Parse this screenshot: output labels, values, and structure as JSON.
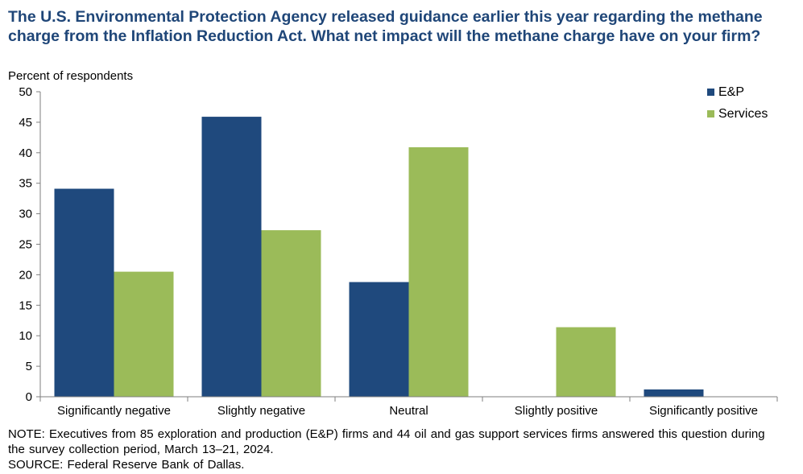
{
  "title": "The U.S. Environmental Protection Agency released guidance earlier this year regarding the methane charge from the Inflation Reduction Act. What net impact will the methane charge have on your firm?",
  "note": "NOTE: Executives from 85 exploration and production (E&P) firms and 44 oil and gas support services firms answered this question during the survey collection period, March 13–21, 2024.",
  "source": "SOURCE: Federal Reserve Bank of Dallas.",
  "colors": {
    "ep": "#1f497d",
    "services": "#9bbb59",
    "title": "#1f4678"
  },
  "chart_data": {
    "type": "bar",
    "title": "The U.S. Environmental Protection Agency released guidance earlier this year regarding the methane charge from the Inflation Reduction Act. What net impact will the methane charge have on your firm?",
    "ylabel": "Percent of respondents",
    "xlabel": "",
    "ylim": [
      0,
      50
    ],
    "yticks": [
      0,
      5,
      10,
      15,
      20,
      25,
      30,
      35,
      40,
      45,
      50
    ],
    "grid": false,
    "legend": "top-right",
    "categories": [
      "Significantly negative",
      "Slightly negative",
      "Neutral",
      "Slightly positive",
      "Significantly positive"
    ],
    "series": [
      {
        "name": "E&P",
        "color": "#1f497d",
        "values": [
          34.1,
          45.9,
          18.8,
          0,
          1.2
        ]
      },
      {
        "name": "Services",
        "color": "#9bbb59",
        "values": [
          20.5,
          27.3,
          40.9,
          11.4,
          0
        ]
      }
    ]
  }
}
